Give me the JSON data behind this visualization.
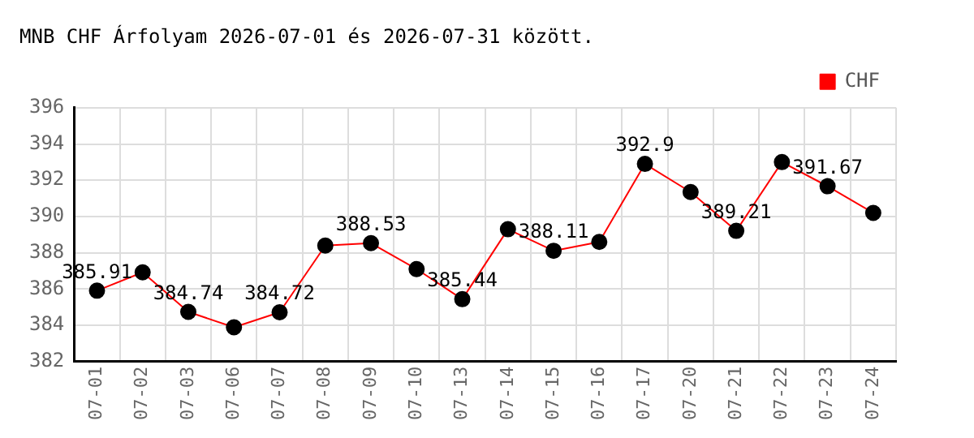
{
  "chart_data": {
    "type": "line",
    "title": "MNB CHF Árfolyam 2026-07-01 és 2026-07-31 között.",
    "categories": [
      "07-01",
      "07-02",
      "07-03",
      "07-06",
      "07-07",
      "07-08",
      "07-09",
      "07-10",
      "07-13",
      "07-14",
      "07-15",
      "07-16",
      "07-17",
      "07-20",
      "07-21",
      "07-22",
      "07-23",
      "07-24"
    ],
    "series": [
      {
        "name": "CHF",
        "color": "#ff0000",
        "values": [
          385.91,
          386.92,
          384.74,
          383.89,
          384.72,
          388.4,
          388.53,
          387.1,
          385.44,
          389.3,
          388.11,
          388.6,
          392.9,
          391.35,
          389.21,
          393.0,
          391.67,
          390.2
        ],
        "value_labels": [
          "385.91",
          null,
          "384.74",
          null,
          "384.72",
          null,
          "388.53",
          null,
          "385.44",
          null,
          "388.11",
          null,
          "392.9",
          null,
          "389.21",
          null,
          "391.67",
          null
        ]
      }
    ],
    "ylim": [
      382,
      396
    ],
    "yticks": [
      382,
      384,
      386,
      388,
      390,
      392,
      394,
      396
    ],
    "grid": true,
    "legend": "top right",
    "marker": "circle",
    "line_style": "solid"
  }
}
